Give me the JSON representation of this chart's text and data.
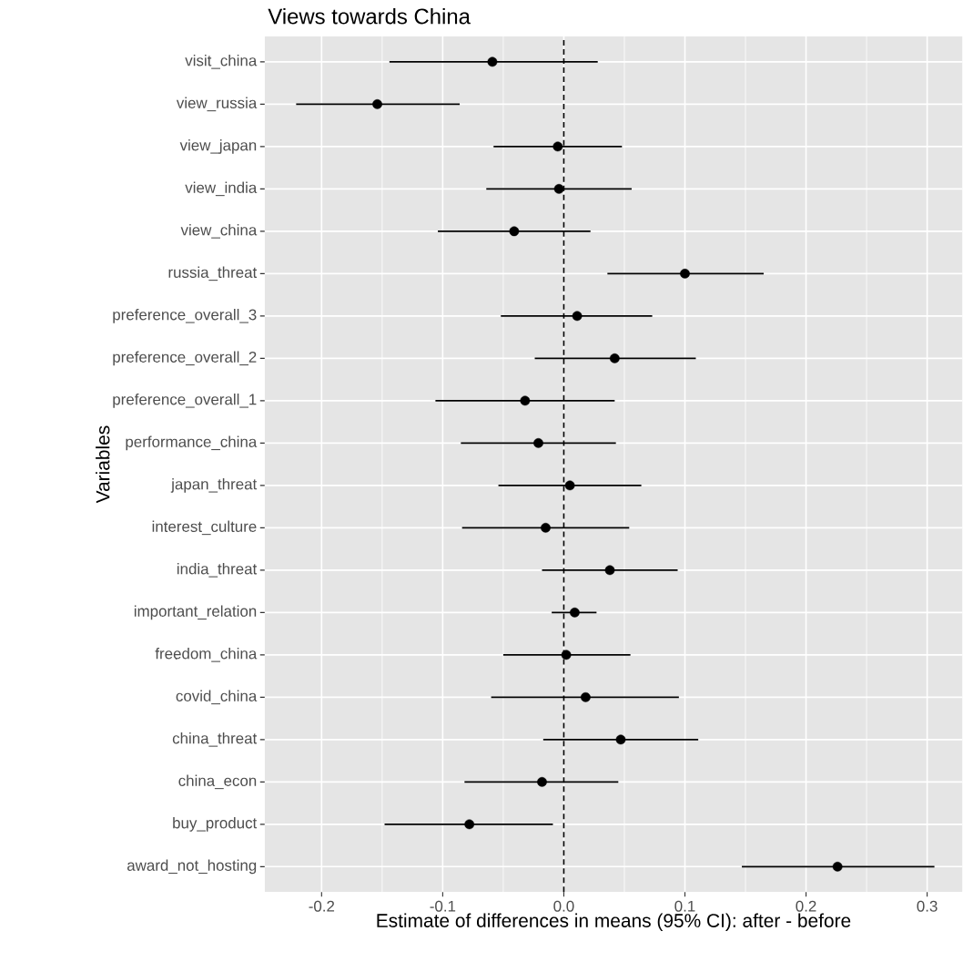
{
  "chart_data": {
    "type": "scatter",
    "orientation": "horizontal",
    "title": "Views towards China",
    "xlabel": "Estimate of differences in means (95% CI): after - before",
    "ylabel": "Variables",
    "categories": [
      "visit_china",
      "view_russia",
      "view_japan",
      "view_india",
      "view_china",
      "russia_threat",
      "preference_overall_3",
      "preference_overall_2",
      "preference_overall_1",
      "performance_china",
      "japan_threat",
      "interest_culture",
      "india_threat",
      "important_relation",
      "freedom_china",
      "covid_china",
      "china_threat",
      "china_econ",
      "buy_product",
      "award_not_hosting"
    ],
    "values": [
      -0.059,
      -0.154,
      -0.005,
      -0.004,
      -0.041,
      0.1,
      0.011,
      0.042,
      -0.032,
      -0.021,
      0.005,
      -0.015,
      0.038,
      0.009,
      0.002,
      0.018,
      0.047,
      -0.018,
      -0.078,
      0.226
    ],
    "errors": [
      [
        -0.144,
        0.028
      ],
      [
        -0.221,
        -0.086
      ],
      [
        -0.058,
        0.048
      ],
      [
        -0.064,
        0.056
      ],
      [
        -0.104,
        0.022
      ],
      [
        0.036,
        0.165
      ],
      [
        -0.052,
        0.073
      ],
      [
        -0.024,
        0.109
      ],
      [
        -0.106,
        0.042
      ],
      [
        -0.085,
        0.043
      ],
      [
        -0.054,
        0.064
      ],
      [
        -0.084,
        0.054
      ],
      [
        -0.018,
        0.094
      ],
      [
        -0.01,
        0.027
      ],
      [
        -0.05,
        0.055
      ],
      [
        -0.06,
        0.095
      ],
      [
        -0.017,
        0.111
      ],
      [
        -0.082,
        0.045
      ],
      [
        -0.148,
        -0.009
      ],
      [
        0.147,
        0.306
      ]
    ],
    "color": "#000000",
    "marker": "circle",
    "grid": true,
    "xlim": [
      -0.247,
      0.329
    ],
    "xticks": [
      {
        "value": -0.2,
        "label": "-0.2"
      },
      {
        "value": -0.1,
        "label": "-0.1"
      },
      {
        "value": 0.0,
        "label": "0.0"
      },
      {
        "value": 0.1,
        "label": "0.1"
      },
      {
        "value": 0.2,
        "label": "0.2"
      },
      {
        "value": 0.3,
        "label": "0.3"
      }
    ],
    "ref_lines": [
      {
        "axis": "x",
        "value": 0,
        "line_style": "dashed",
        "color": "#000000"
      }
    ]
  }
}
